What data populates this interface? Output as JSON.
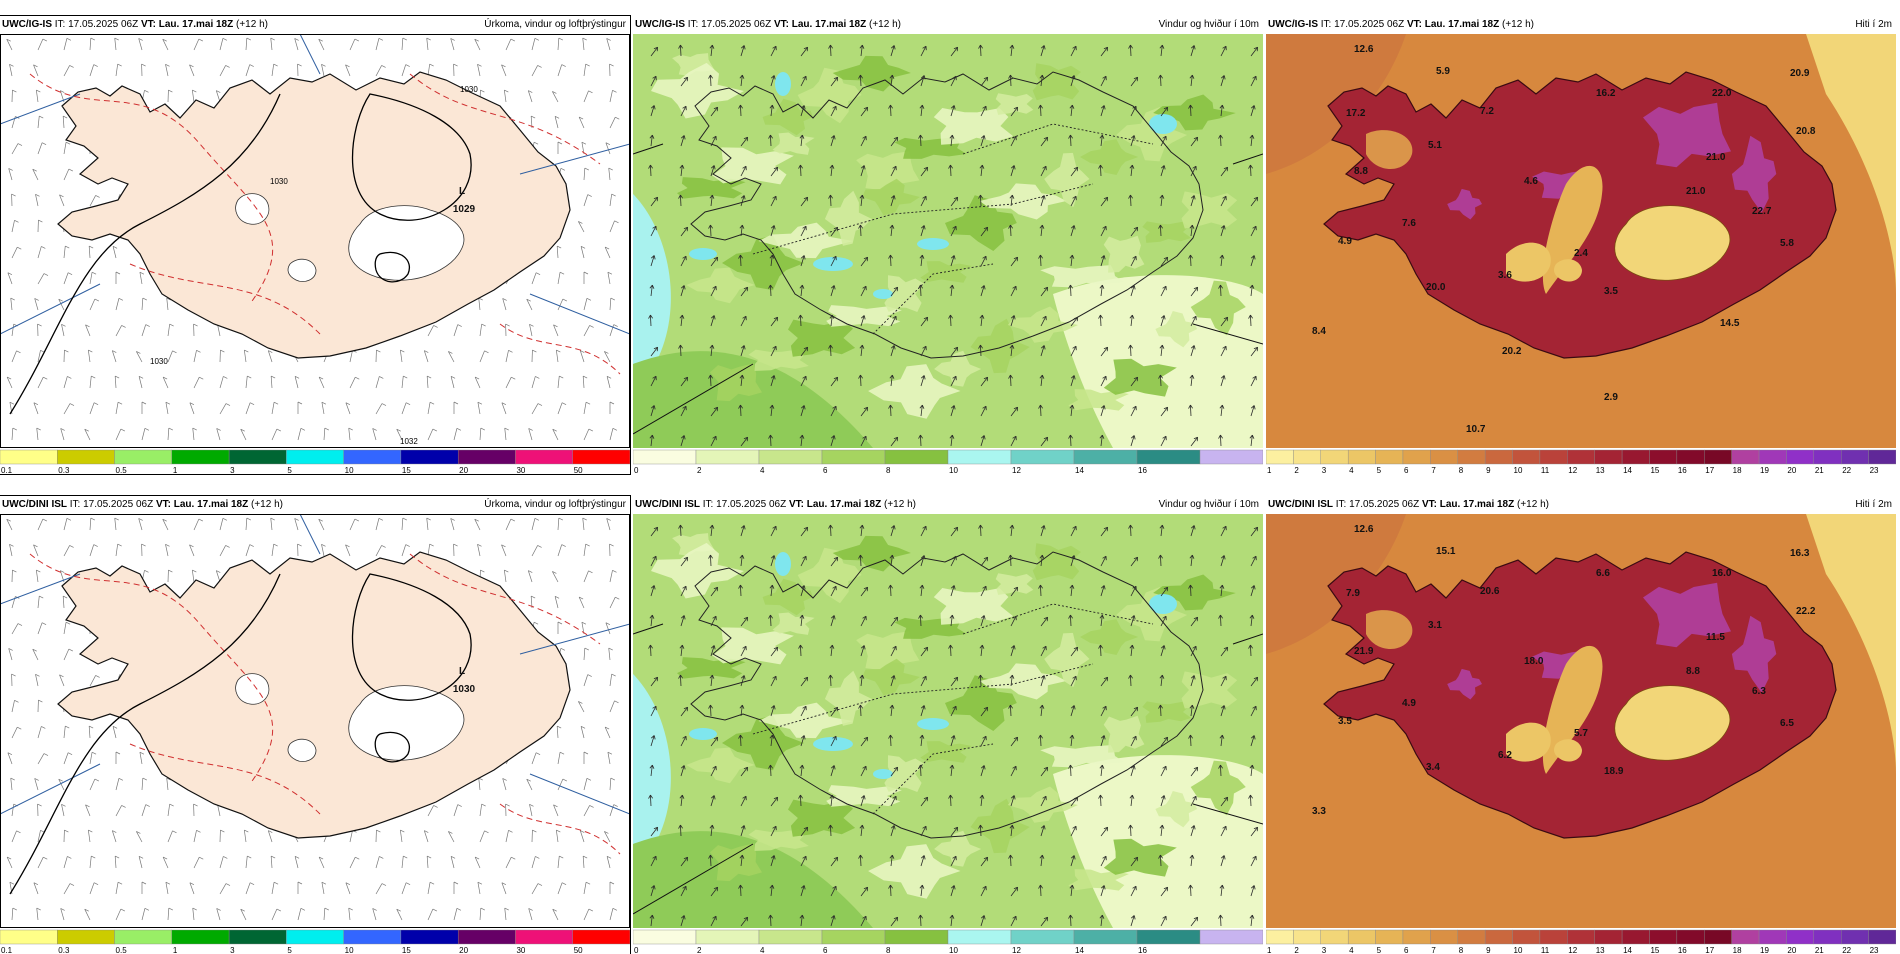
{
  "rows": [
    {
      "model": "UWC/IG-IS",
      "panels": [
        {
          "kind": "precip",
          "it_label": "IT:",
          "it_value": "17.05.2025 06Z",
          "vt_label": "VT:",
          "vt_value": "Lau. 17.mai 18Z",
          "lead": "(+12 h)",
          "title": "Úrkoma, vindur og loftþrýstingur",
          "low_letter": "L",
          "low_value": "1029",
          "isobars": [
            "1030",
            "1030",
            "1030",
            "1032"
          ],
          "colorbar": {
            "colors": [
              "#ffff88",
              "#cccc00",
              "#99ee66",
              "#00aa00",
              "#006633",
              "#00eeee",
              "#3366ff",
              "#0000aa",
              "#660066",
              "#ee1177",
              "#ff0000"
            ],
            "ticks": [
              "0.1",
              "0.3",
              "0.5",
              "1",
              "3",
              "5",
              "10",
              "15",
              "20",
              "30",
              "50"
            ]
          }
        },
        {
          "kind": "wind",
          "it_label": "IT:",
          "it_value": "17.05.2025 06Z",
          "vt_label": "VT:",
          "vt_value": "Lau. 17.mai 18Z",
          "lead": "(+12 h)",
          "title": "Vindur og hviður í 10m",
          "colorbar": {
            "colors": [
              "#fafde0",
              "#e4f5b8",
              "#c8e68c",
              "#a6d460",
              "#86c140",
              "#aaf6f0",
              "#70d2c8",
              "#4db0a6",
              "#2b8c84",
              "#c8b4f0"
            ],
            "ticks": [
              "0",
              "2",
              "4",
              "6",
              "8",
              "10",
              "12",
              "14",
              "16"
            ]
          }
        },
        {
          "kind": "temp",
          "it_label": "IT:",
          "it_value": "17.05.2025 06Z",
          "vt_label": "VT:",
          "vt_value": "Lau. 17.mai 18Z",
          "lead": "(+12 h)",
          "title": "Hiti í 2m",
          "values": [
            "12.6",
            "5.9",
            "16.2",
            "22.0",
            "20.9",
            "17.2",
            "7.2",
            "20.8",
            "8.8",
            "5.1",
            "21.0",
            "4.6",
            "22.7",
            "21.0",
            "7.6",
            "4.9",
            "3.6",
            "2.4",
            "5.8",
            "20.0",
            "3.5",
            "8.4",
            "14.5",
            "20.2",
            "2.9",
            "10.7"
          ],
          "colorbar": {
            "colors": [
              "#fcf0a0",
              "#f8e48c",
              "#f2d678",
              "#ecc666",
              "#e6b456",
              "#e0a24c",
              "#da9044",
              "#d27c40",
              "#ca683e",
              "#c2543c",
              "#ba423a",
              "#b03238",
              "#a42434",
              "#981830",
              "#8c0e2c",
              "#820a2a",
              "#780826",
              "#b040a0",
              "#a038b8",
              "#9030c8",
              "#8030c0",
              "#7030b0",
              "#602898"
            ],
            "ticks": [
              "1",
              "2",
              "3",
              "4",
              "5",
              "6",
              "7",
              "8",
              "9",
              "10",
              "11",
              "12",
              "13",
              "14",
              "15",
              "16",
              "17",
              "18",
              "19",
              "20",
              "21",
              "22",
              "23"
            ]
          }
        }
      ]
    },
    {
      "model": "UWC/DINI ISL",
      "panels": [
        {
          "kind": "precip",
          "it_label": "IT:",
          "it_value": "17.05.2025 06Z",
          "vt_label": "VT:",
          "vt_value": "Lau. 17.mai 18Z",
          "lead": "(+12 h)",
          "title": "Úrkoma, vindur og loftþrýstingur",
          "low_letter": "L",
          "low_value": "1030",
          "isobars": [],
          "colorbar": {
            "colors": [
              "#ffff88",
              "#cccc00",
              "#99ee66",
              "#00aa00",
              "#006633",
              "#00eeee",
              "#3366ff",
              "#0000aa",
              "#660066",
              "#ee1177",
              "#ff0000"
            ],
            "ticks": [
              "0.1",
              "0.3",
              "0.5",
              "1",
              "3",
              "5",
              "10",
              "15",
              "20",
              "30",
              "50"
            ]
          }
        },
        {
          "kind": "wind",
          "it_label": "IT:",
          "it_value": "17.05.2025 06Z",
          "vt_label": "VT:",
          "vt_value": "Lau. 17.mai 18Z",
          "lead": "(+12 h)",
          "title": "Vindur og hviður í 10m",
          "colorbar": {
            "colors": [
              "#fafde0",
              "#e4f5b8",
              "#c8e68c",
              "#a6d460",
              "#86c140",
              "#aaf6f0",
              "#70d2c8",
              "#4db0a6",
              "#2b8c84",
              "#c8b4f0"
            ],
            "ticks": [
              "0",
              "2",
              "4",
              "6",
              "8",
              "10",
              "12",
              "14",
              "16"
            ]
          }
        },
        {
          "kind": "temp",
          "it_label": "IT:",
          "it_value": "17.05.2025 06Z",
          "vt_label": "VT:",
          "vt_value": "Lau. 17.mai 18Z",
          "lead": "(+12 h)",
          "title": "Hiti í 2m",
          "values": [
            "12.6",
            "15.1",
            "6.6",
            "16.0",
            "16.3",
            "7.9",
            "20.6",
            "22.2",
            "21.9",
            "3.1",
            "11.5",
            "18.0",
            "6.3",
            "8.8",
            "4.9",
            "3.5",
            "6.2",
            "5.7",
            "6.5",
            "3.4",
            "18.9",
            "3.3"
          ],
          "colorbar": {
            "colors": [
              "#fcf0a0",
              "#f8e48c",
              "#f2d678",
              "#ecc666",
              "#e6b456",
              "#e0a24c",
              "#da9044",
              "#d27c40",
              "#ca683e",
              "#c2543c",
              "#ba423a",
              "#b03238",
              "#a42434",
              "#981830",
              "#8c0e2c",
              "#820a2a",
              "#780826",
              "#b040a0",
              "#a038b8",
              "#9030c8",
              "#8030c0",
              "#7030b0",
              "#602898"
            ],
            "ticks": [
              "1",
              "2",
              "3",
              "4",
              "5",
              "6",
              "7",
              "8",
              "9",
              "10",
              "11",
              "12",
              "13",
              "14",
              "15",
              "16",
              "17",
              "18",
              "19",
              "20",
              "21",
              "22",
              "23"
            ]
          }
        }
      ]
    }
  ]
}
